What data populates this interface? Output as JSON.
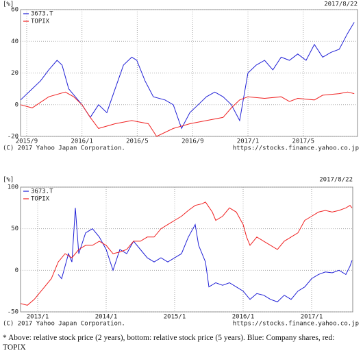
{
  "chart_data": [
    {
      "type": "line",
      "y_label": "[%]",
      "date": "2017/8/22",
      "copyright": "(C) 2017 Yahoo Japan Corporation.",
      "source_url": "https://stocks.finance.yahoo.co.jp",
      "xlim": [
        2015.63,
        2017.66
      ],
      "xticks": [
        {
          "value": 2015.667,
          "label": "2015/9"
        },
        {
          "value": 2016.0,
          "label": "2016/1"
        },
        {
          "value": 2016.333,
          "label": "2016/5"
        },
        {
          "value": 2016.667,
          "label": "2016/9"
        },
        {
          "value": 2017.0,
          "label": "2017/1"
        },
        {
          "value": 2017.333,
          "label": "2017/5"
        }
      ],
      "ylim": [
        -20,
        60
      ],
      "yticks": [
        -20,
        0,
        20,
        40,
        60
      ],
      "grid": true,
      "series": [
        {
          "name": "3673.T",
          "color": "#1f1fd6",
          "x": [
            2015.63,
            2015.7,
            2015.75,
            2015.8,
            2015.85,
            2015.88,
            2015.92,
            2015.96,
            2016.0,
            2016.05,
            2016.1,
            2016.15,
            2016.2,
            2016.25,
            2016.3,
            2016.33,
            2016.38,
            2016.43,
            2016.5,
            2016.55,
            2016.6,
            2016.65,
            2016.7,
            2016.75,
            2016.8,
            2016.85,
            2016.9,
            2016.95,
            2017.0,
            2017.05,
            2017.1,
            2017.15,
            2017.2,
            2017.25,
            2017.3,
            2017.35,
            2017.4,
            2017.45,
            2017.5,
            2017.55,
            2017.6,
            2017.64
          ],
          "values": [
            3,
            10,
            15,
            22,
            28,
            25,
            10,
            5,
            0,
            -8,
            0,
            -5,
            10,
            25,
            30,
            28,
            15,
            5,
            3,
            0,
            -15,
            -5,
            0,
            5,
            8,
            5,
            0,
            -10,
            20,
            25,
            28,
            22,
            30,
            28,
            32,
            28,
            38,
            30,
            33,
            35,
            45,
            52
          ]
        },
        {
          "name": "TOPIX",
          "color": "#f02020",
          "x": [
            2015.63,
            2015.7,
            2015.8,
            2015.9,
            2015.95,
            2016.0,
            2016.05,
            2016.1,
            2016.2,
            2016.3,
            2016.4,
            2016.45,
            2016.55,
            2016.65,
            2016.75,
            2016.85,
            2016.9,
            2016.95,
            2017.0,
            2017.1,
            2017.2,
            2017.25,
            2017.3,
            2017.4,
            2017.45,
            2017.55,
            2017.6,
            2017.64
          ],
          "values": [
            0,
            -2,
            5,
            8,
            5,
            0,
            -8,
            -15,
            -12,
            -10,
            -12,
            -20,
            -15,
            -12,
            -10,
            -8,
            -2,
            3,
            5,
            4,
            5,
            2,
            4,
            3,
            6,
            7,
            8,
            7
          ]
        }
      ]
    },
    {
      "type": "line",
      "y_label": "[%]",
      "date": "2017/8/22",
      "copyright": "(C) 2017 Yahoo Japan Corporation.",
      "source_url": "https://stocks.finance.yahoo.co.jp",
      "xlim": [
        2012.75,
        2017.6
      ],
      "xticks": [
        {
          "value": 2013.0,
          "label": "2013/1"
        },
        {
          "value": 2014.0,
          "label": "2014/1"
        },
        {
          "value": 2015.0,
          "label": "2015/1"
        },
        {
          "value": 2016.0,
          "label": "2016/1"
        },
        {
          "value": 2017.0,
          "label": "2017/1"
        }
      ],
      "ylim": [
        -50,
        100
      ],
      "yticks": [
        -50,
        0,
        50,
        100
      ],
      "grid": true,
      "series": [
        {
          "name": "3673.T",
          "color": "#1f1fd6",
          "x": [
            2013.3,
            2013.35,
            2013.45,
            2013.5,
            2013.55,
            2013.6,
            2013.7,
            2013.8,
            2013.9,
            2014.0,
            2014.1,
            2014.2,
            2014.3,
            2014.4,
            2014.5,
            2014.6,
            2014.7,
            2014.8,
            2014.9,
            2015.0,
            2015.1,
            2015.2,
            2015.3,
            2015.35,
            2015.45,
            2015.5,
            2015.6,
            2015.7,
            2015.8,
            2015.9,
            2016.0,
            2016.1,
            2016.2,
            2016.3,
            2016.4,
            2016.5,
            2016.6,
            2016.7,
            2016.8,
            2016.9,
            2017.0,
            2017.1,
            2017.2,
            2017.3,
            2017.4,
            2017.5,
            2017.56,
            2017.59
          ],
          "values": [
            -5,
            -10,
            20,
            10,
            75,
            20,
            45,
            50,
            40,
            25,
            0,
            25,
            20,
            35,
            25,
            15,
            10,
            15,
            10,
            15,
            20,
            40,
            55,
            30,
            10,
            -20,
            -15,
            -18,
            -15,
            -20,
            -25,
            -35,
            -28,
            -30,
            -35,
            -38,
            -30,
            -35,
            -25,
            -20,
            -10,
            -5,
            -2,
            -3,
            0,
            -5,
            5,
            12
          ]
        },
        {
          "name": "TOPIX",
          "color": "#f02020",
          "x": [
            2012.75,
            2012.85,
            2012.95,
            2013.05,
            2013.2,
            2013.3,
            2013.4,
            2013.5,
            2013.6,
            2013.7,
            2013.8,
            2013.9,
            2014.0,
            2014.1,
            2014.2,
            2014.3,
            2014.4,
            2014.5,
            2014.6,
            2014.7,
            2014.8,
            2014.9,
            2015.0,
            2015.1,
            2015.2,
            2015.3,
            2015.4,
            2015.45,
            2015.55,
            2015.6,
            2015.7,
            2015.8,
            2015.9,
            2016.0,
            2016.05,
            2016.1,
            2016.2,
            2016.3,
            2016.4,
            2016.5,
            2016.6,
            2016.7,
            2016.8,
            2016.9,
            2017.0,
            2017.1,
            2017.2,
            2017.3,
            2017.4,
            2017.5,
            2017.56,
            2017.59
          ],
          "values": [
            -40,
            -42,
            -35,
            -25,
            -10,
            10,
            20,
            15,
            25,
            30,
            30,
            35,
            30,
            20,
            22,
            25,
            35,
            35,
            40,
            40,
            50,
            55,
            60,
            65,
            72,
            78,
            80,
            82,
            70,
            60,
            65,
            75,
            70,
            55,
            40,
            30,
            40,
            35,
            30,
            25,
            35,
            40,
            45,
            60,
            65,
            70,
            72,
            70,
            72,
            75,
            78,
            75
          ]
        }
      ]
    }
  ],
  "caption": "* Above: relative stock price (2 years), bottom: relative stock price (5 years). Blue: Company shares, red: TOPIX"
}
